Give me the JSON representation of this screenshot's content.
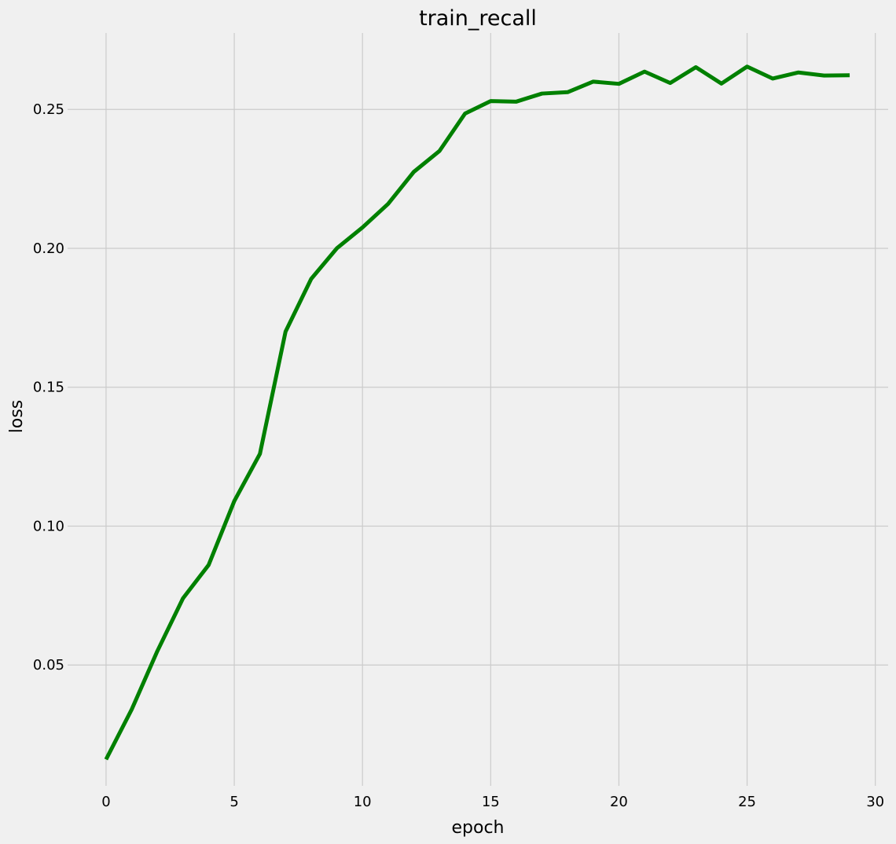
{
  "chart_data": {
    "type": "line",
    "title": "train_recall",
    "xlabel": "epoch",
    "ylabel": "loss",
    "xlim": [
      -1.5,
      30.5
    ],
    "ylim": [
      0.0065,
      0.2775
    ],
    "xticks": [
      0,
      5,
      10,
      15,
      20,
      25,
      30
    ],
    "yticks": [
      0.05,
      0.1,
      0.15,
      0.2,
      0.25
    ],
    "ytick_labels": [
      "0.05",
      "0.10",
      "0.15",
      "0.20",
      "0.25"
    ],
    "grid": true,
    "legend": "none",
    "series": [
      {
        "color": "#008000",
        "x": [
          0,
          1,
          2,
          3,
          4,
          5,
          6,
          7,
          8,
          9,
          10,
          11,
          12,
          13,
          14,
          15,
          16,
          17,
          18,
          19,
          20,
          21,
          22,
          23,
          24,
          25,
          26,
          27,
          28,
          29
        ],
        "values": [
          0.016,
          0.034,
          0.055,
          0.074,
          0.086,
          0.109,
          0.126,
          0.17,
          0.189,
          0.2,
          0.2075,
          0.216,
          0.2275,
          0.235,
          0.2485,
          0.253,
          0.2528,
          0.2557,
          0.2562,
          0.26,
          0.2592,
          0.2636,
          0.2595,
          0.2652,
          0.2593,
          0.2654,
          0.2611,
          0.2633,
          0.2622,
          0.2623
        ]
      }
    ]
  },
  "colors": {
    "background": "#f0f0f0",
    "grid": "#cbcbcb",
    "line": "#008000"
  }
}
